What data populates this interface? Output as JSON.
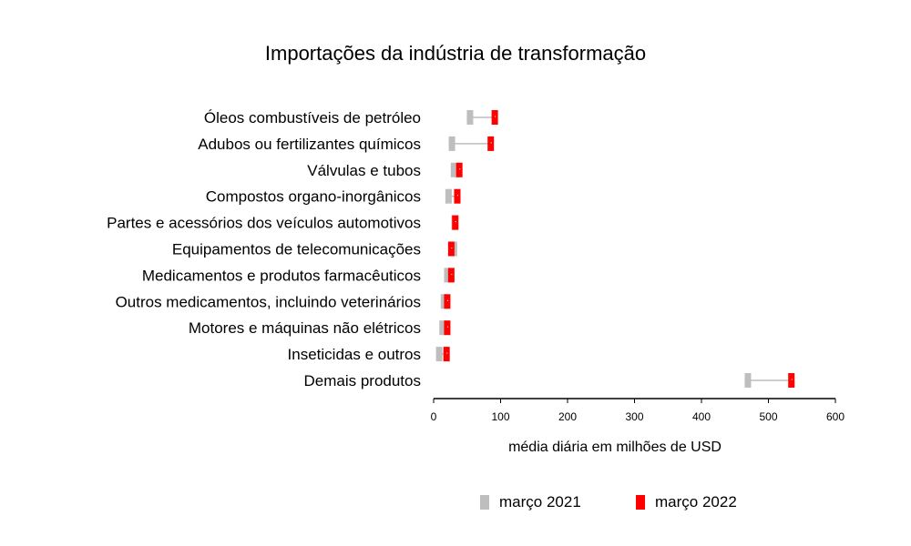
{
  "chart_data": {
    "type": "dumbbell",
    "title": "Importações da indústria de transformação",
    "xlabel": "média diária em milhões de USD",
    "ylabel": "",
    "xlim": [
      0,
      600
    ],
    "xticks": [
      0,
      100,
      200,
      300,
      400,
      500,
      600
    ],
    "grid": false,
    "legend_position": "bottom",
    "categories": [
      "Óleos combustíveis de petróleo",
      "Adubos ou fertilizantes químicos",
      "Válvulas e tubos",
      "Compostos organo-inorgânicos",
      "Partes e acessórios dos veículos automotivos",
      "Equipamentos de telecomunicações",
      "Medicamentos e produtos farmacêuticos",
      "Outros medicamentos, incluindo veterinários",
      "Motores e máquinas não elétricos",
      "Inseticidas e outros",
      "Demais produtos"
    ],
    "series": [
      {
        "name": "março 2021",
        "color": "#bebebe",
        "values": [
          55,
          28,
          31,
          23,
          32,
          31,
          21,
          16,
          14,
          9,
          470
        ]
      },
      {
        "name": "março 2022",
        "color": "#ff0000",
        "values": [
          92,
          86,
          39,
          36,
          33,
          27,
          27,
          21,
          21,
          20,
          535
        ]
      }
    ]
  }
}
